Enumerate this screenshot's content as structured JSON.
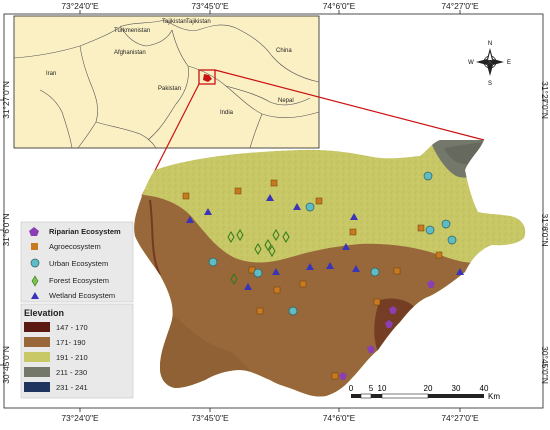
{
  "coordinates": {
    "top": [
      "73°24'0\"E",
      "73°45'0\"E",
      "74°6'0\"E",
      "74°27'0\"E"
    ],
    "bottom": [
      "73°24'0\"E",
      "73°45'0\"E",
      "74°6'0\"E",
      "74°27'0\"E"
    ],
    "left": [
      "31°27'0\"N",
      "31°6'0\"N",
      "30°45'0\"N"
    ],
    "right": [
      "31°27'0\"N",
      "31°6'0\"N",
      "30°45'0\"N"
    ]
  },
  "inset": {
    "countries": [
      "Turkmenistan",
      "Tajikistan",
      "Tajikistan",
      "Afghanistan",
      "China",
      "Iran",
      "Pakistan",
      "Nepal",
      "India"
    ],
    "background_color": "#fbf0c4"
  },
  "north_arrow": {
    "n": "N",
    "s": "S",
    "e": "E",
    "w": "W"
  },
  "legend": {
    "ecosystems": [
      {
        "label": "Riparian Ecosystem",
        "symbol": "pentagon",
        "color": "#8b3fb3"
      },
      {
        "label": "Agroecosystem",
        "symbol": "square",
        "color": "#c87a1f"
      },
      {
        "label": "Urban Ecosystem",
        "symbol": "circle",
        "color": "#5fbcc4"
      },
      {
        "label": "Forest Ecosystem",
        "symbol": "diamond",
        "color": "#7cbf4a"
      },
      {
        "label": "Wetland Ecosystem",
        "symbol": "triangle",
        "color": "#3a34b8"
      }
    ],
    "elevation_title": "Elevation",
    "elevation_classes": [
      {
        "label": "147 - 170",
        "color": "#5a1a12"
      },
      {
        "label": "171- 190",
        "color": "#98683a"
      },
      {
        "label": "191 - 210",
        "color": "#c8c866"
      },
      {
        "label": "211 - 230",
        "color": "#74786a"
      },
      {
        "label": "231 - 241",
        "color": "#1f3560"
      }
    ]
  },
  "scale_bar": {
    "ticks": [
      "0",
      "5",
      "10",
      "20",
      "30",
      "40"
    ],
    "unit": "Km"
  },
  "colors": {
    "frame": "#222222",
    "pointer": "#cc1111"
  }
}
